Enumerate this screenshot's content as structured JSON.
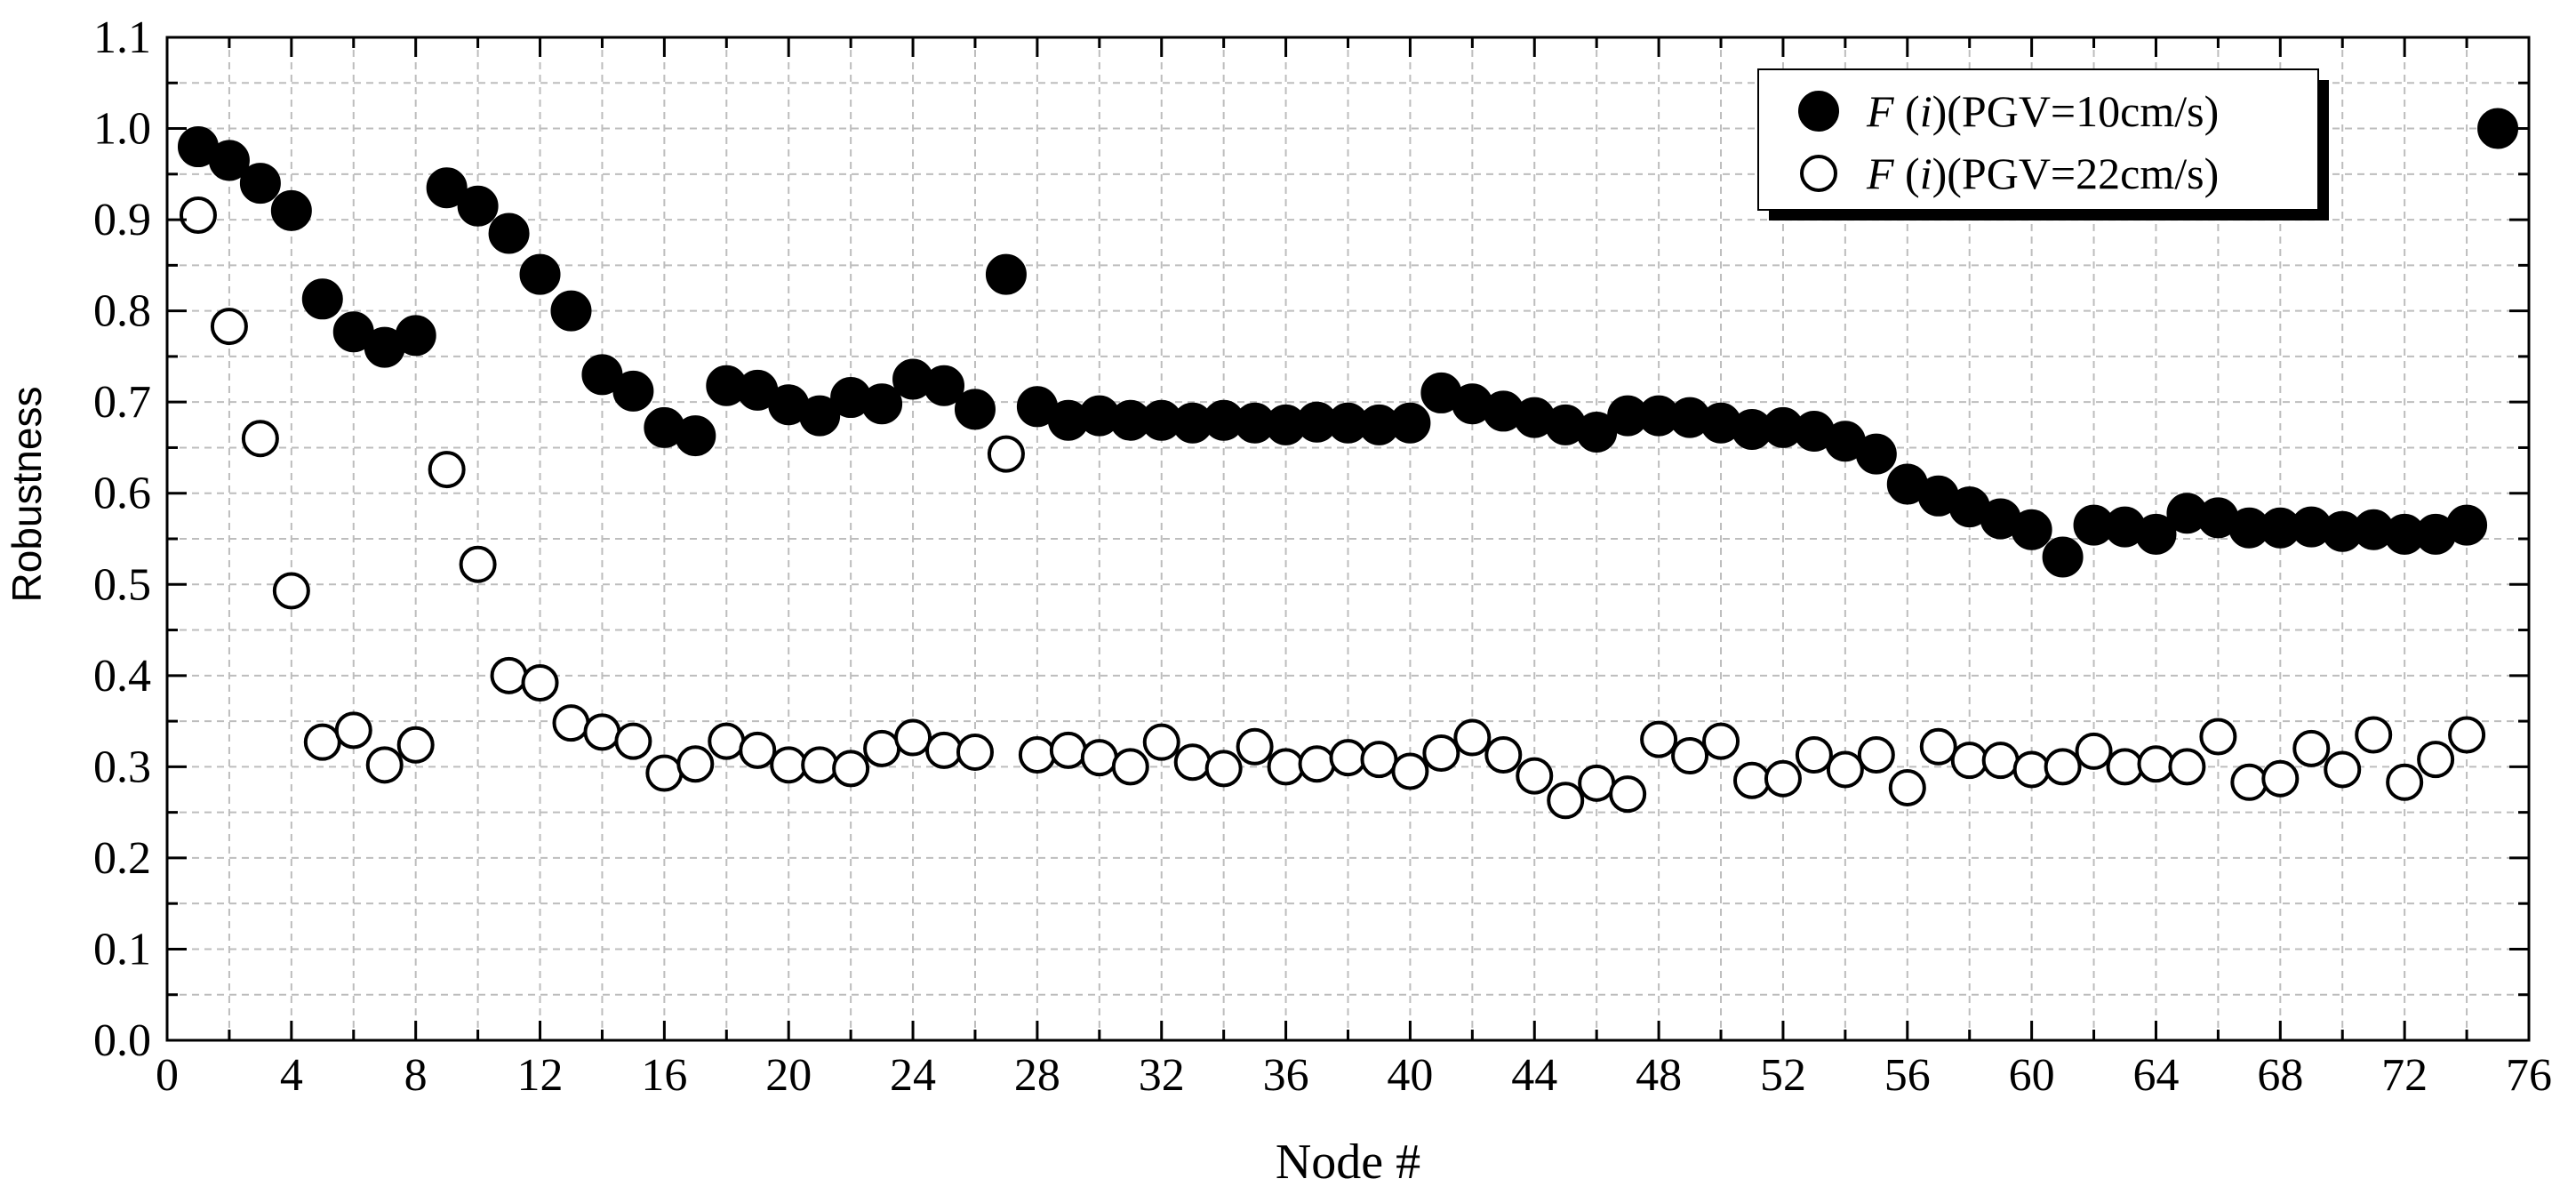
{
  "chart_data": {
    "type": "scatter",
    "title": "",
    "xlabel": "Node #",
    "ylabel": "Robustness",
    "xlim": [
      0,
      76
    ],
    "ylim": [
      0.0,
      1.1
    ],
    "xticks": [
      0,
      4,
      8,
      12,
      16,
      20,
      24,
      28,
      32,
      36,
      40,
      44,
      48,
      52,
      56,
      60,
      64,
      68,
      72,
      76
    ],
    "xtick_labels": [
      "0",
      "4",
      "8",
      "12",
      "16",
      "20",
      "24",
      "28",
      "32",
      "36",
      "40",
      "44",
      "48",
      "52",
      "56",
      "60",
      "64",
      "68",
      "72",
      "76"
    ],
    "yticks": [
      0.0,
      0.1,
      0.2,
      0.3,
      0.4,
      0.5,
      0.6,
      0.7,
      0.8,
      0.9,
      1.0,
      1.1
    ],
    "ytick_labels": [
      "0.0",
      "0.1",
      "0.2",
      "0.3",
      "0.4",
      "0.5",
      "0.6",
      "0.7",
      "0.8",
      "0.9",
      "1.0",
      "1.1"
    ],
    "grid": true,
    "legend_position": "top-right",
    "series": [
      {
        "name": "F (i)(PGV=10cm/s)",
        "name_parts": [
          "F",
          " (",
          "i",
          ")(PGV=10cm/s)"
        ],
        "marker": "filled-circle",
        "color": "#000000",
        "x": [
          1,
          2,
          3,
          4,
          5,
          6,
          7,
          8,
          9,
          10,
          11,
          12,
          13,
          14,
          15,
          16,
          17,
          18,
          19,
          20,
          21,
          22,
          23,
          24,
          25,
          26,
          27,
          28,
          29,
          30,
          31,
          32,
          33,
          34,
          35,
          36,
          37,
          38,
          39,
          40,
          41,
          42,
          43,
          44,
          45,
          46,
          47,
          48,
          49,
          50,
          51,
          52,
          53,
          54,
          55,
          56,
          57,
          58,
          59,
          60,
          61,
          62,
          63,
          64,
          65,
          66,
          67,
          68,
          69,
          70,
          71,
          72,
          73,
          74,
          75
        ],
        "y": [
          0.98,
          0.965,
          0.94,
          0.91,
          0.813,
          0.777,
          0.76,
          0.773,
          0.935,
          0.915,
          0.885,
          0.84,
          0.8,
          0.73,
          0.712,
          0.672,
          0.663,
          0.718,
          0.713,
          0.697,
          0.685,
          0.705,
          0.698,
          0.725,
          0.718,
          0.692,
          0.84,
          0.695,
          0.68,
          0.685,
          0.68,
          0.68,
          0.677,
          0.68,
          0.677,
          0.675,
          0.678,
          0.677,
          0.675,
          0.677,
          0.71,
          0.698,
          0.69,
          0.683,
          0.675,
          0.667,
          0.685,
          0.685,
          0.683,
          0.677,
          0.67,
          0.672,
          0.668,
          0.657,
          0.643,
          0.61,
          0.597,
          0.585,
          0.572,
          0.56,
          0.53,
          0.565,
          0.563,
          0.555,
          0.578,
          0.573,
          0.562,
          0.562,
          0.563,
          0.558,
          0.56,
          0.555,
          0.555,
          0.565,
          1.0
        ]
      },
      {
        "name": "F (i)(PGV=22cm/s)",
        "name_parts": [
          "F",
          " (",
          "i",
          ")(PGV=22cm/s)"
        ],
        "marker": "open-circle",
        "color": "#000000",
        "x": [
          1,
          2,
          3,
          4,
          5,
          6,
          7,
          8,
          9,
          10,
          11,
          12,
          13,
          14,
          15,
          16,
          17,
          18,
          19,
          20,
          21,
          22,
          23,
          24,
          25,
          26,
          27,
          28,
          29,
          30,
          31,
          32,
          33,
          34,
          35,
          36,
          37,
          38,
          39,
          40,
          41,
          42,
          43,
          44,
          45,
          46,
          47,
          48,
          49,
          50,
          51,
          52,
          53,
          54,
          55,
          56,
          57,
          58,
          59,
          60,
          61,
          62,
          63,
          64,
          65,
          66,
          67,
          68,
          69,
          70,
          71,
          72,
          73,
          74
        ],
        "y": [
          0.905,
          0.783,
          0.66,
          0.493,
          0.327,
          0.34,
          0.302,
          0.324,
          0.626,
          0.522,
          0.4,
          0.392,
          0.348,
          0.338,
          0.328,
          0.293,
          0.303,
          0.328,
          0.318,
          0.302,
          0.302,
          0.298,
          0.32,
          0.332,
          0.318,
          0.316,
          0.643,
          0.313,
          0.318,
          0.31,
          0.3,
          0.327,
          0.305,
          0.298,
          0.322,
          0.3,
          0.303,
          0.31,
          0.308,
          0.295,
          0.315,
          0.332,
          0.313,
          0.29,
          0.263,
          0.282,
          0.27,
          0.33,
          0.312,
          0.328,
          0.285,
          0.287,
          0.313,
          0.297,
          0.313,
          0.277,
          0.322,
          0.307,
          0.307,
          0.297,
          0.3,
          0.317,
          0.3,
          0.303,
          0.3,
          0.333,
          0.283,
          0.287,
          0.32,
          0.297,
          0.335,
          0.283,
          0.308,
          0.335
        ]
      }
    ]
  }
}
